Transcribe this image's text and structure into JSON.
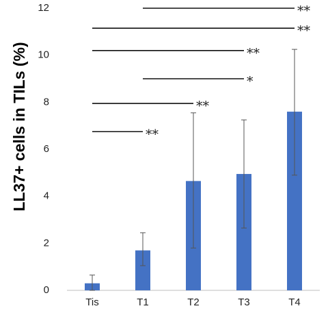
{
  "chart_data": {
    "type": "bar",
    "ylabel": "LL37+ cells in TILs (%)",
    "xlabel": "",
    "categories": [
      "Tis",
      "T1",
      "T2",
      "T3",
      "T4"
    ],
    "values": [
      0.3,
      1.7,
      4.65,
      4.95,
      7.6
    ],
    "error_low": [
      0.0,
      1.05,
      1.8,
      2.65,
      4.9
    ],
    "error_high": [
      0.65,
      2.45,
      7.55,
      7.25,
      10.25
    ],
    "ylim": [
      0,
      12
    ],
    "yticks": [
      "0",
      "2",
      "4",
      "6",
      "8",
      "10",
      "12"
    ],
    "ytick_values": [
      0,
      2,
      4,
      6,
      8,
      10,
      12
    ],
    "grid": false,
    "bar_color": "#4472c4",
    "significance": [
      {
        "from": "T1",
        "to": "T4",
        "y": 12.0,
        "label": "**"
      },
      {
        "from": "Tis",
        "to": "T4",
        "y": 11.15,
        "label": "**"
      },
      {
        "from": "Tis",
        "to": "T3",
        "y": 10.2,
        "label": "**"
      },
      {
        "from": "T1",
        "to": "T3",
        "y": 9.0,
        "label": "*"
      },
      {
        "from": "Tis",
        "to": "T2",
        "y": 7.95,
        "label": "**"
      },
      {
        "from": "Tis",
        "to": "T1",
        "y": 6.75,
        "label": "**"
      }
    ]
  }
}
